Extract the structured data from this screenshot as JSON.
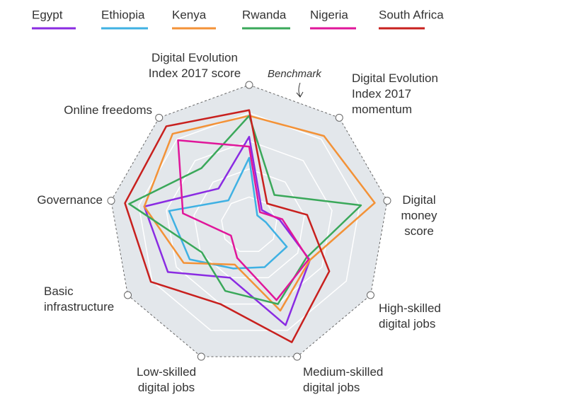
{
  "chart_data": {
    "type": "radar",
    "categories": [
      "Digital Evolution\nIndex 2017 score",
      "Digital Evolution\nIndex 2017\nmomentum",
      "Digital\nmoney\nscore",
      "High-skilled\ndigital jobs",
      "Medium-skilled\ndigital jobs",
      "Low-skilled\ndigital jobs",
      "Basic\ninfrastructure",
      "Governance",
      "Online freedoms"
    ],
    "benchmark_label": "Benchmark",
    "rlim": [
      0,
      100
    ],
    "rticks": [
      20,
      40,
      60,
      80,
      100
    ],
    "series": [
      {
        "name": "Egypt",
        "color": "#8a2be2",
        "values": [
          63,
          14,
          22,
          50,
          76,
          40,
          67,
          76,
          34
        ]
      },
      {
        "name": "Ethiopia",
        "color": "#3fb1e3",
        "values": [
          48,
          9,
          12,
          31,
          32,
          33,
          49,
          58,
          23
        ]
      },
      {
        "name": "Kenya",
        "color": "#f39237",
        "values": [
          78,
          83,
          91,
          50,
          65,
          30,
          54,
          76,
          85
        ]
      },
      {
        "name": "Rwanda",
        "color": "#3aa85a",
        "values": [
          78,
          28,
          81,
          47,
          60,
          50,
          39,
          87,
          53
        ]
      },
      {
        "name": "Nigeria",
        "color": "#e0169a",
        "values": [
          56,
          12,
          24,
          49,
          57,
          25,
          15,
          48,
          79
        ]
      },
      {
        "name": "South Africa",
        "color": "#c8201e",
        "values": [
          82,
          20,
          42,
          66,
          89,
          60,
          81,
          90,
          92
        ]
      }
    ]
  }
}
